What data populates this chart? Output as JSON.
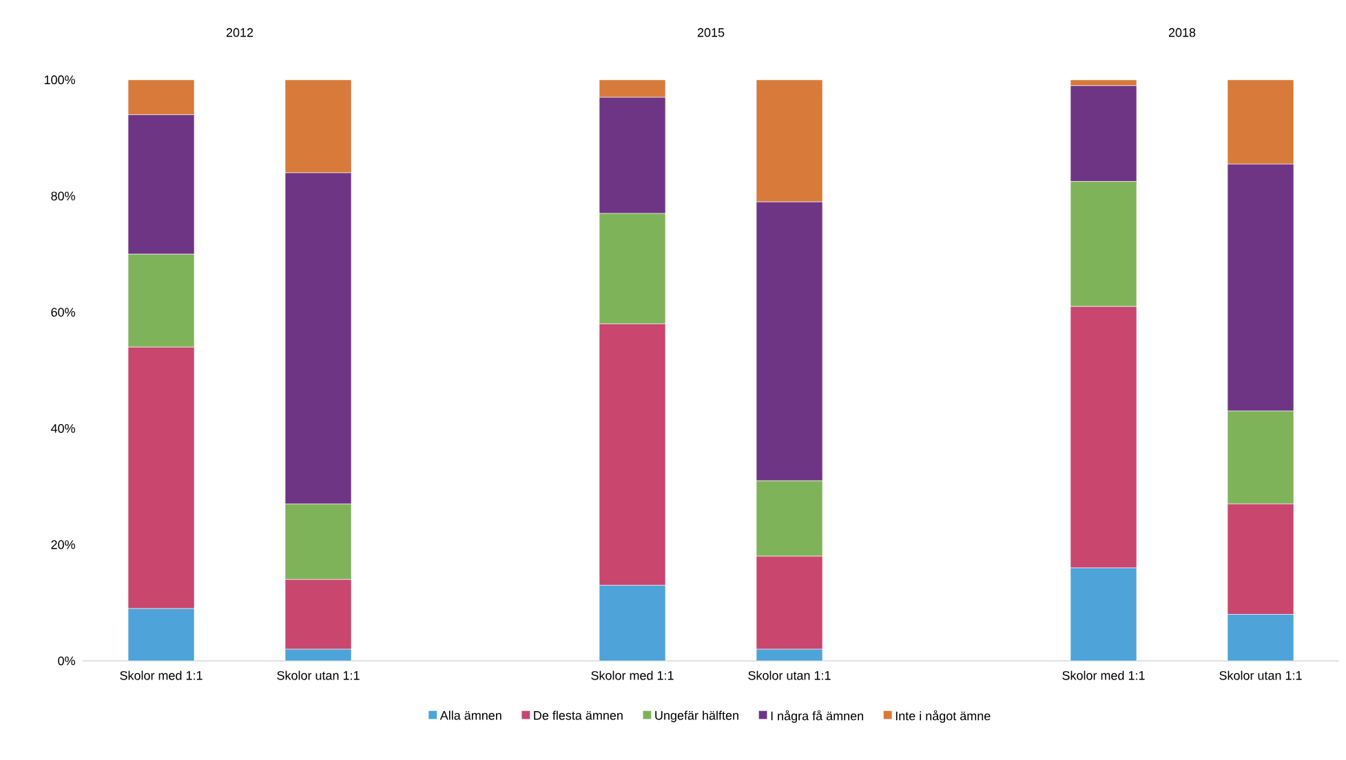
{
  "chart_data": {
    "type": "bar",
    "stacked": true,
    "categories": [
      "Skolor med 1:1",
      "Skolor utan 1:1",
      null,
      "Skolor med 1:1",
      "Skolor utan 1:1",
      null,
      "Skolor med 1:1",
      "Skolor utan 1:1"
    ],
    "series": [
      {
        "name": "Alla ämnen",
        "color": "#4ea3d9",
        "values": [
          9,
          2,
          null,
          13,
          2,
          null,
          16,
          8
        ]
      },
      {
        "name": "De flesta ämnen",
        "color": "#c9466e",
        "values": [
          45,
          12,
          null,
          45,
          16,
          null,
          45,
          19
        ]
      },
      {
        "name": "Ungefär hälften",
        "color": "#7fb35a",
        "values": [
          16,
          13,
          null,
          19,
          13,
          null,
          21.5,
          16
        ]
      },
      {
        "name": "I några få ämnen",
        "color": "#6f3585",
        "values": [
          24,
          57,
          null,
          20,
          48,
          null,
          16.5,
          42.5
        ]
      },
      {
        "name": "Inte i något ämne",
        "color": "#d77a3a",
        "values": [
          6,
          16,
          null,
          3,
          21,
          null,
          1,
          14.5
        ]
      }
    ],
    "ylim": [
      0,
      100
    ],
    "yticks": [
      {
        "value": 0,
        "label": "0%"
      },
      {
        "value": 20,
        "label": "20%"
      },
      {
        "value": 40,
        "label": "40%"
      },
      {
        "value": 60,
        "label": "60%"
      },
      {
        "value": 80,
        "label": "80%"
      },
      {
        "value": 100,
        "label": "100%"
      }
    ],
    "annotations": [
      "2012",
      "2015",
      "2018"
    ],
    "legend": "bottom"
  }
}
